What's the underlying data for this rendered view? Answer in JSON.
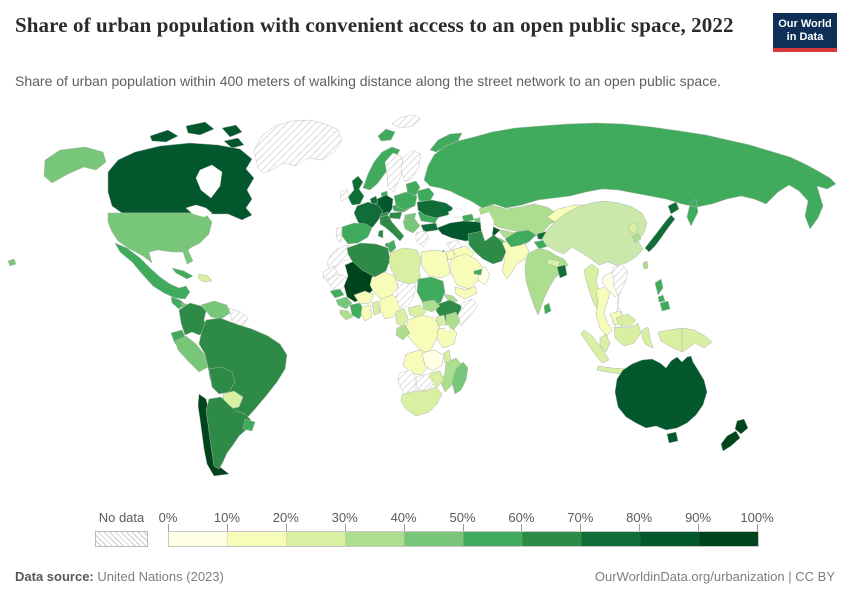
{
  "header": {
    "title": "Share of urban population with convenient access to an open public space, 2022",
    "subtitle": "Share of urban population within 400 meters of walking distance along the street network to an open public space.",
    "logo": {
      "line1": "Our World",
      "line2": "in Data",
      "bg_color": "#0e2f56",
      "accent_color": "#d8353c"
    }
  },
  "legend": {
    "no_data_label": "No data",
    "tick_labels": [
      "0%",
      "10%",
      "20%",
      "30%",
      "40%",
      "50%",
      "60%",
      "70%",
      "80%",
      "90%",
      "100%"
    ],
    "bin_colors": [
      "#ffffe5",
      "#f7fcb9",
      "#d9f0a3",
      "#addd8e",
      "#78c679",
      "#41ab5d",
      "#2e8b47",
      "#116d38",
      "#02572c",
      "#00441b"
    ]
  },
  "map": {
    "type": "choropleth",
    "ocean_color": "#ffffff",
    "border_color": "#adb5ad",
    "regions": [
      {
        "id": "canada",
        "name": "Canada",
        "value_bin": "80-90%",
        "color": "#02572c"
      },
      {
        "id": "usa",
        "name": "United States",
        "value_bin": "40-50%",
        "color": "#78c679"
      },
      {
        "id": "greenland",
        "name": "Greenland",
        "no_data": true
      },
      {
        "id": "mexico",
        "name": "Mexico",
        "value_bin": "50-60%",
        "color": "#41ab5d"
      },
      {
        "id": "guatemala",
        "name": "Guatemala",
        "value_bin": "50-60%",
        "color": "#41ab5d"
      },
      {
        "id": "honduras-nicaragua",
        "name": "Honduras / Nicaragua",
        "value_bin": "40-50%",
        "color": "#78c679"
      },
      {
        "id": "costa-rica-panama",
        "name": "Costa Rica / Panama",
        "value_bin": "60-70%",
        "color": "#2e8b47"
      },
      {
        "id": "cuba",
        "name": "Cuba",
        "value_bin": "50-60%",
        "color": "#41ab5d"
      },
      {
        "id": "hispaniola",
        "name": "Haiti / Dominican Republic",
        "value_bin": "20-30%",
        "color": "#d9f0a3"
      },
      {
        "id": "colombia",
        "name": "Colombia",
        "value_bin": "60-70%",
        "color": "#2e8b47"
      },
      {
        "id": "venezuela",
        "name": "Venezuela",
        "value_bin": "40-50%",
        "color": "#78c679"
      },
      {
        "id": "guyanas",
        "name": "Guyana / Suriname",
        "no_data": true
      },
      {
        "id": "ecuador",
        "name": "Ecuador",
        "value_bin": "50-60%",
        "color": "#41ab5d"
      },
      {
        "id": "peru",
        "name": "Peru",
        "value_bin": "40-50%",
        "color": "#78c679"
      },
      {
        "id": "brazil",
        "name": "Brazil",
        "value_bin": "60-70%",
        "color": "#2e8b47"
      },
      {
        "id": "bolivia",
        "name": "Bolivia",
        "value_bin": "60-70%",
        "color": "#2e8b47"
      },
      {
        "id": "paraguay",
        "name": "Paraguay",
        "value_bin": "20-30%",
        "color": "#d9f0a3"
      },
      {
        "id": "chile",
        "name": "Chile",
        "value_bin": "90-100%",
        "color": "#00441b"
      },
      {
        "id": "argentina",
        "name": "Argentina",
        "value_bin": "60-70%",
        "color": "#2e8b47"
      },
      {
        "id": "uruguay",
        "name": "Uruguay",
        "value_bin": "50-60%",
        "color": "#41ab5d"
      },
      {
        "id": "iceland",
        "name": "Iceland",
        "value_bin": "50-60%",
        "color": "#41ab5d"
      },
      {
        "id": "uk",
        "name": "United Kingdom",
        "value_bin": "70-80%",
        "color": "#116d38"
      },
      {
        "id": "ireland",
        "name": "Ireland",
        "no_data": true
      },
      {
        "id": "norway",
        "name": "Norway",
        "value_bin": "50-60%",
        "color": "#41ab5d"
      },
      {
        "id": "sweden",
        "name": "Sweden",
        "no_data": true
      },
      {
        "id": "finland",
        "name": "Finland",
        "no_data": true
      },
      {
        "id": "denmark",
        "name": "Denmark",
        "value_bin": "50-60%",
        "color": "#41ab5d"
      },
      {
        "id": "baltics",
        "name": "Baltic states",
        "value_bin": "50-60%",
        "color": "#41ab5d"
      },
      {
        "id": "germany",
        "name": "Germany",
        "value_bin": "80-90%",
        "color": "#02572c"
      },
      {
        "id": "benelux",
        "name": "Netherlands / Belgium",
        "value_bin": "70-80%",
        "color": "#116d38"
      },
      {
        "id": "france",
        "name": "France",
        "value_bin": "70-80%",
        "color": "#116d38"
      },
      {
        "id": "spain",
        "name": "Spain",
        "value_bin": "50-60%",
        "color": "#41ab5d"
      },
      {
        "id": "portugal",
        "name": "Portugal",
        "no_data": true
      },
      {
        "id": "switzerland",
        "name": "Switzerland",
        "value_bin": "60-70%",
        "color": "#2e8b47"
      },
      {
        "id": "austria",
        "name": "Austria",
        "value_bin": "60-70%",
        "color": "#2e8b47"
      },
      {
        "id": "italy",
        "name": "Italy",
        "value_bin": "60-70%",
        "color": "#2e8b47"
      },
      {
        "id": "czech-slovakia",
        "name": "Czechia / Slovakia",
        "value_bin": "50-60%",
        "color": "#41ab5d"
      },
      {
        "id": "poland",
        "name": "Poland",
        "value_bin": "50-60%",
        "color": "#41ab5d"
      },
      {
        "id": "hungary",
        "name": "Hungary",
        "value_bin": "40-50%",
        "color": "#78c679"
      },
      {
        "id": "balkans",
        "name": "Western Balkans",
        "value_bin": "40-50%",
        "color": "#78c679"
      },
      {
        "id": "romania",
        "name": "Romania",
        "value_bin": "50-60%",
        "color": "#41ab5d"
      },
      {
        "id": "bulgaria",
        "name": "Bulgaria",
        "value_bin": "70-80%",
        "color": "#116d38"
      },
      {
        "id": "greece",
        "name": "Greece",
        "no_data": true
      },
      {
        "id": "belarus",
        "name": "Belarus",
        "value_bin": "50-60%",
        "color": "#41ab5d"
      },
      {
        "id": "ukraine",
        "name": "Ukraine",
        "value_bin": "70-80%",
        "color": "#116d38"
      },
      {
        "id": "svalbard",
        "name": "Svalbard",
        "no_data": true
      },
      {
        "id": "russia",
        "name": "Russia",
        "value_bin": "50-60%",
        "color": "#41ab5d"
      },
      {
        "id": "kazakhstan",
        "name": "Kazakhstan",
        "value_bin": "30-40%",
        "color": "#addd8e"
      },
      {
        "id": "uzbekistan",
        "name": "Uzbekistan",
        "value_bin": "30-40%",
        "color": "#addd8e"
      },
      {
        "id": "turkmenistan",
        "name": "Turkmenistan",
        "value_bin": "40-50%",
        "color": "#78c679"
      },
      {
        "id": "kyrgyzstan",
        "name": "Kyrgyzstan",
        "value_bin": "70-80%",
        "color": "#116d38"
      },
      {
        "id": "tajikistan",
        "name": "Tajikistan",
        "value_bin": "50-60%",
        "color": "#41ab5d"
      },
      {
        "id": "mongolia",
        "name": "Mongolia",
        "value_bin": "10-20%",
        "color": "#f7fcb9"
      },
      {
        "id": "china",
        "name": "China",
        "value_bin": "30-40%",
        "color": "#c9e8a9"
      },
      {
        "id": "japan",
        "name": "Japan",
        "value_bin": "70-80%",
        "color": "#116d38"
      },
      {
        "id": "north-korea",
        "name": "North Korea",
        "value_bin": "20-30%",
        "color": "#d9f0a3"
      },
      {
        "id": "south-korea",
        "name": "South Korea",
        "value_bin": "30-40%",
        "color": "#addd8e"
      },
      {
        "id": "taiwan",
        "name": "Taiwan",
        "value_bin": "30-40%",
        "color": "#addd8e"
      },
      {
        "id": "india",
        "name": "India",
        "value_bin": "30-40%",
        "color": "#addd8e"
      },
      {
        "id": "pakistan",
        "name": "Pakistan",
        "value_bin": "10-20%",
        "color": "#f7fcb9"
      },
      {
        "id": "afghanistan",
        "name": "Afghanistan",
        "value_bin": "50-60%",
        "color": "#41ab5d"
      },
      {
        "id": "nepal",
        "name": "Nepal",
        "value_bin": "20-30%",
        "color": "#d9f0a3"
      },
      {
        "id": "bangladesh",
        "name": "Bangladesh",
        "value_bin": "70-80%",
        "color": "#116d38"
      },
      {
        "id": "sri-lanka",
        "name": "Sri Lanka",
        "value_bin": "50-60%",
        "color": "#41ab5d"
      },
      {
        "id": "myanmar",
        "name": "Myanmar",
        "value_bin": "20-30%",
        "color": "#d9f0a3"
      },
      {
        "id": "thailand",
        "name": "Thailand",
        "value_bin": "10-20%",
        "color": "#f7fcb9"
      },
      {
        "id": "laos",
        "name": "Laos",
        "value_bin": "0-10%",
        "color": "#ffffe5"
      },
      {
        "id": "vietnam",
        "name": "Vietnam",
        "no_data": true
      },
      {
        "id": "cambodia",
        "name": "Cambodia",
        "value_bin": "10-20%",
        "color": "#f7fcb9"
      },
      {
        "id": "malaysia",
        "name": "Malaysia",
        "value_bin": "20-30%",
        "color": "#d9f0a3"
      },
      {
        "id": "indonesia",
        "name": "Indonesia",
        "value_bin": "20-30%",
        "color": "#d9f0a3"
      },
      {
        "id": "philippines",
        "name": "Philippines",
        "value_bin": "50-60%",
        "color": "#41ab5d"
      },
      {
        "id": "png",
        "name": "Papua New Guinea",
        "value_bin": "20-30%",
        "color": "#d9f0a3"
      },
      {
        "id": "georgia",
        "name": "Georgia",
        "value_bin": "50-60%",
        "color": "#41ab5d"
      },
      {
        "id": "azerbaijan",
        "name": "Azerbaijan",
        "value_bin": "40-50%",
        "color": "#78c679"
      },
      {
        "id": "turkey",
        "name": "Turkey",
        "value_bin": "80-90%",
        "color": "#02572c"
      },
      {
        "id": "syria",
        "name": "Syria",
        "no_data": true
      },
      {
        "id": "iraq",
        "name": "Iraq",
        "value_bin": "10-20%",
        "color": "#f7fcb9"
      },
      {
        "id": "iran",
        "name": "Iran",
        "value_bin": "60-70%",
        "color": "#2e8b47"
      },
      {
        "id": "saudi-arabia",
        "name": "Saudi Arabia",
        "value_bin": "10-20%",
        "color": "#f7fcb9"
      },
      {
        "id": "yemen",
        "name": "Yemen",
        "value_bin": "10-20%",
        "color": "#f7fcb9"
      },
      {
        "id": "oman",
        "name": "Oman",
        "value_bin": "0-10%",
        "color": "#ffffe5"
      },
      {
        "id": "uae",
        "name": "United Arab Emirates",
        "value_bin": "50-60%",
        "color": "#41ab5d"
      },
      {
        "id": "israel",
        "name": "Israel",
        "value_bin": "70-80%",
        "color": "#116d38"
      },
      {
        "id": "jordan",
        "name": "Jordan",
        "value_bin": "10-20%",
        "color": "#f7fcb9"
      },
      {
        "id": "morocco",
        "name": "Morocco",
        "no_data": true
      },
      {
        "id": "western-sahara",
        "name": "Western Sahara",
        "no_data": true
      },
      {
        "id": "mauritania",
        "name": "Mauritania",
        "no_data": true
      },
      {
        "id": "mali",
        "name": "Mali",
        "value_bin": "90-100%",
        "color": "#00441b"
      },
      {
        "id": "senegal",
        "name": "Senegal",
        "value_bin": "50-60%",
        "color": "#41ab5d"
      },
      {
        "id": "guinea",
        "name": "Guinea",
        "value_bin": "40-50%",
        "color": "#78c679"
      },
      {
        "id": "sierra-leone-liberia",
        "name": "Sierra Leone / Liberia",
        "value_bin": "30-40%",
        "color": "#addd8e"
      },
      {
        "id": "cote-divoire",
        "name": "Côte d'Ivoire",
        "value_bin": "50-60%",
        "color": "#41ab5d"
      },
      {
        "id": "ghana",
        "name": "Ghana",
        "value_bin": "10-20%",
        "color": "#f7fcb9"
      },
      {
        "id": "burkina-faso",
        "name": "Burkina Faso",
        "value_bin": "10-20%",
        "color": "#f7fcb9"
      },
      {
        "id": "togo-benin",
        "name": "Togo / Benin",
        "value_bin": "20-30%",
        "color": "#d9f0a3"
      },
      {
        "id": "nigeria",
        "name": "Nigeria",
        "value_bin": "10-20%",
        "color": "#f7fcb9"
      },
      {
        "id": "niger",
        "name": "Niger",
        "value_bin": "10-20%",
        "color": "#f7fcb9"
      },
      {
        "id": "chad",
        "name": "Chad",
        "no_data": true
      },
      {
        "id": "tunisia",
        "name": "Tunisia",
        "value_bin": "50-60%",
        "color": "#41ab5d"
      },
      {
        "id": "algeria",
        "name": "Algeria",
        "value_bin": "60-70%",
        "color": "#2e8b47"
      },
      {
        "id": "libya",
        "name": "Libya",
        "value_bin": "20-30%",
        "color": "#d9f0a3"
      },
      {
        "id": "egypt",
        "name": "Egypt",
        "value_bin": "10-20%",
        "color": "#f7fcb9"
      },
      {
        "id": "sudan",
        "name": "Sudan",
        "value_bin": "50-60%",
        "color": "#41ab5d"
      },
      {
        "id": "eritrea",
        "name": "Eritrea",
        "value_bin": "30-40%",
        "color": "#addd8e"
      },
      {
        "id": "ethiopia",
        "name": "Ethiopia",
        "value_bin": "60-70%",
        "color": "#2e8b47"
      },
      {
        "id": "somalia",
        "name": "Somalia",
        "no_data": true
      },
      {
        "id": "cameroon",
        "name": "Cameroon",
        "value_bin": "20-30%",
        "color": "#d9f0a3"
      },
      {
        "id": "car",
        "name": "Central African Republic",
        "value_bin": "20-30%",
        "color": "#d9f0a3"
      },
      {
        "id": "south-sudan",
        "name": "South Sudan",
        "value_bin": "30-40%",
        "color": "#addd8e"
      },
      {
        "id": "drc",
        "name": "Democratic Republic of Congo",
        "value_bin": "10-20%",
        "color": "#f7fcb9"
      },
      {
        "id": "gabon-congo",
        "name": "Gabon / Congo",
        "value_bin": "30-40%",
        "color": "#addd8e"
      },
      {
        "id": "uganda",
        "name": "Uganda",
        "value_bin": "20-30%",
        "color": "#d9f0a3"
      },
      {
        "id": "kenya",
        "name": "Kenya",
        "value_bin": "30-40%",
        "color": "#addd8e"
      },
      {
        "id": "tanzania",
        "name": "Tanzania",
        "value_bin": "10-20%",
        "color": "#f7fcb9"
      },
      {
        "id": "angola",
        "name": "Angola",
        "value_bin": "10-20%",
        "color": "#f7fcb9"
      },
      {
        "id": "zambia",
        "name": "Zambia",
        "value_bin": "0-10%",
        "color": "#ffffe5"
      },
      {
        "id": "malawi",
        "name": "Malawi",
        "value_bin": "20-30%",
        "color": "#d9f0a3"
      },
      {
        "id": "mozambique",
        "name": "Mozambique",
        "value_bin": "30-40%",
        "color": "#addd8e"
      },
      {
        "id": "zimbabwe",
        "name": "Zimbabwe",
        "value_bin": "20-30%",
        "color": "#d9f0a3"
      },
      {
        "id": "botswana",
        "name": "Botswana",
        "no_data": true
      },
      {
        "id": "namibia",
        "name": "Namibia",
        "no_data": true
      },
      {
        "id": "south-africa",
        "name": "South Africa",
        "value_bin": "20-30%",
        "color": "#d9f0a3"
      },
      {
        "id": "madagascar",
        "name": "Madagascar",
        "value_bin": "40-50%",
        "color": "#78c679"
      },
      {
        "id": "australia",
        "name": "Australia",
        "value_bin": "80-90%",
        "color": "#02572c"
      },
      {
        "id": "new-zealand",
        "name": "New Zealand",
        "value_bin": "90-100%",
        "color": "#00441b"
      }
    ]
  },
  "footer": {
    "source_label": "Data source:",
    "source_value": "United Nations (2023)",
    "right_text": "OurWorldinData.org/urbanization | CC BY"
  }
}
